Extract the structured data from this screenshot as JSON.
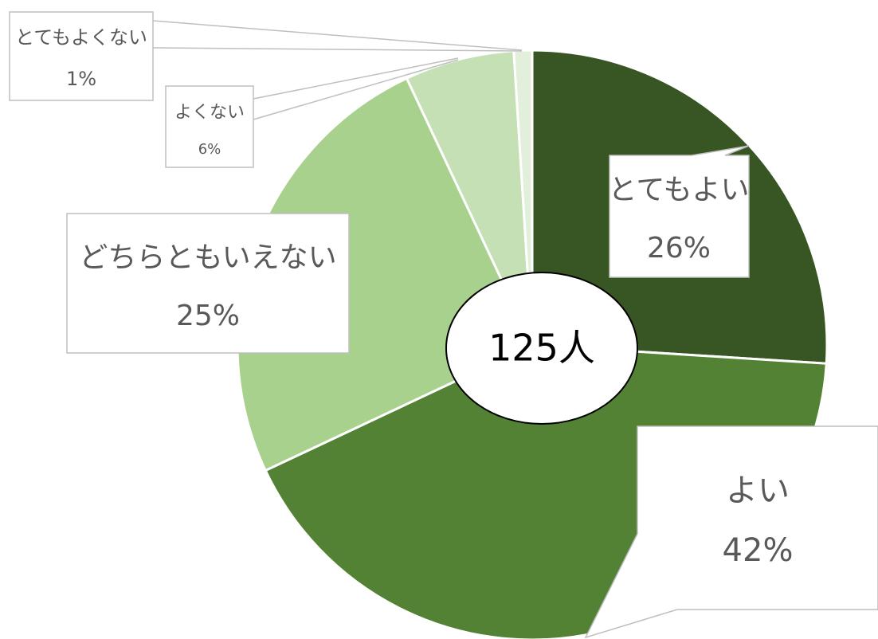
{
  "chart_data": {
    "type": "pie",
    "center_label": "125人",
    "categories": [
      "とてもよい",
      "よい",
      "どちらともいえない",
      "よくない",
      "とてもよくない"
    ],
    "values": [
      26,
      42,
      25,
      6,
      1
    ],
    "value_labels": [
      "26%",
      "42%",
      "25%",
      "6%",
      "1%"
    ],
    "colors": [
      "#375623",
      "#548235",
      "#a9d18e",
      "#c5e0b4",
      "#e2efda"
    ]
  }
}
